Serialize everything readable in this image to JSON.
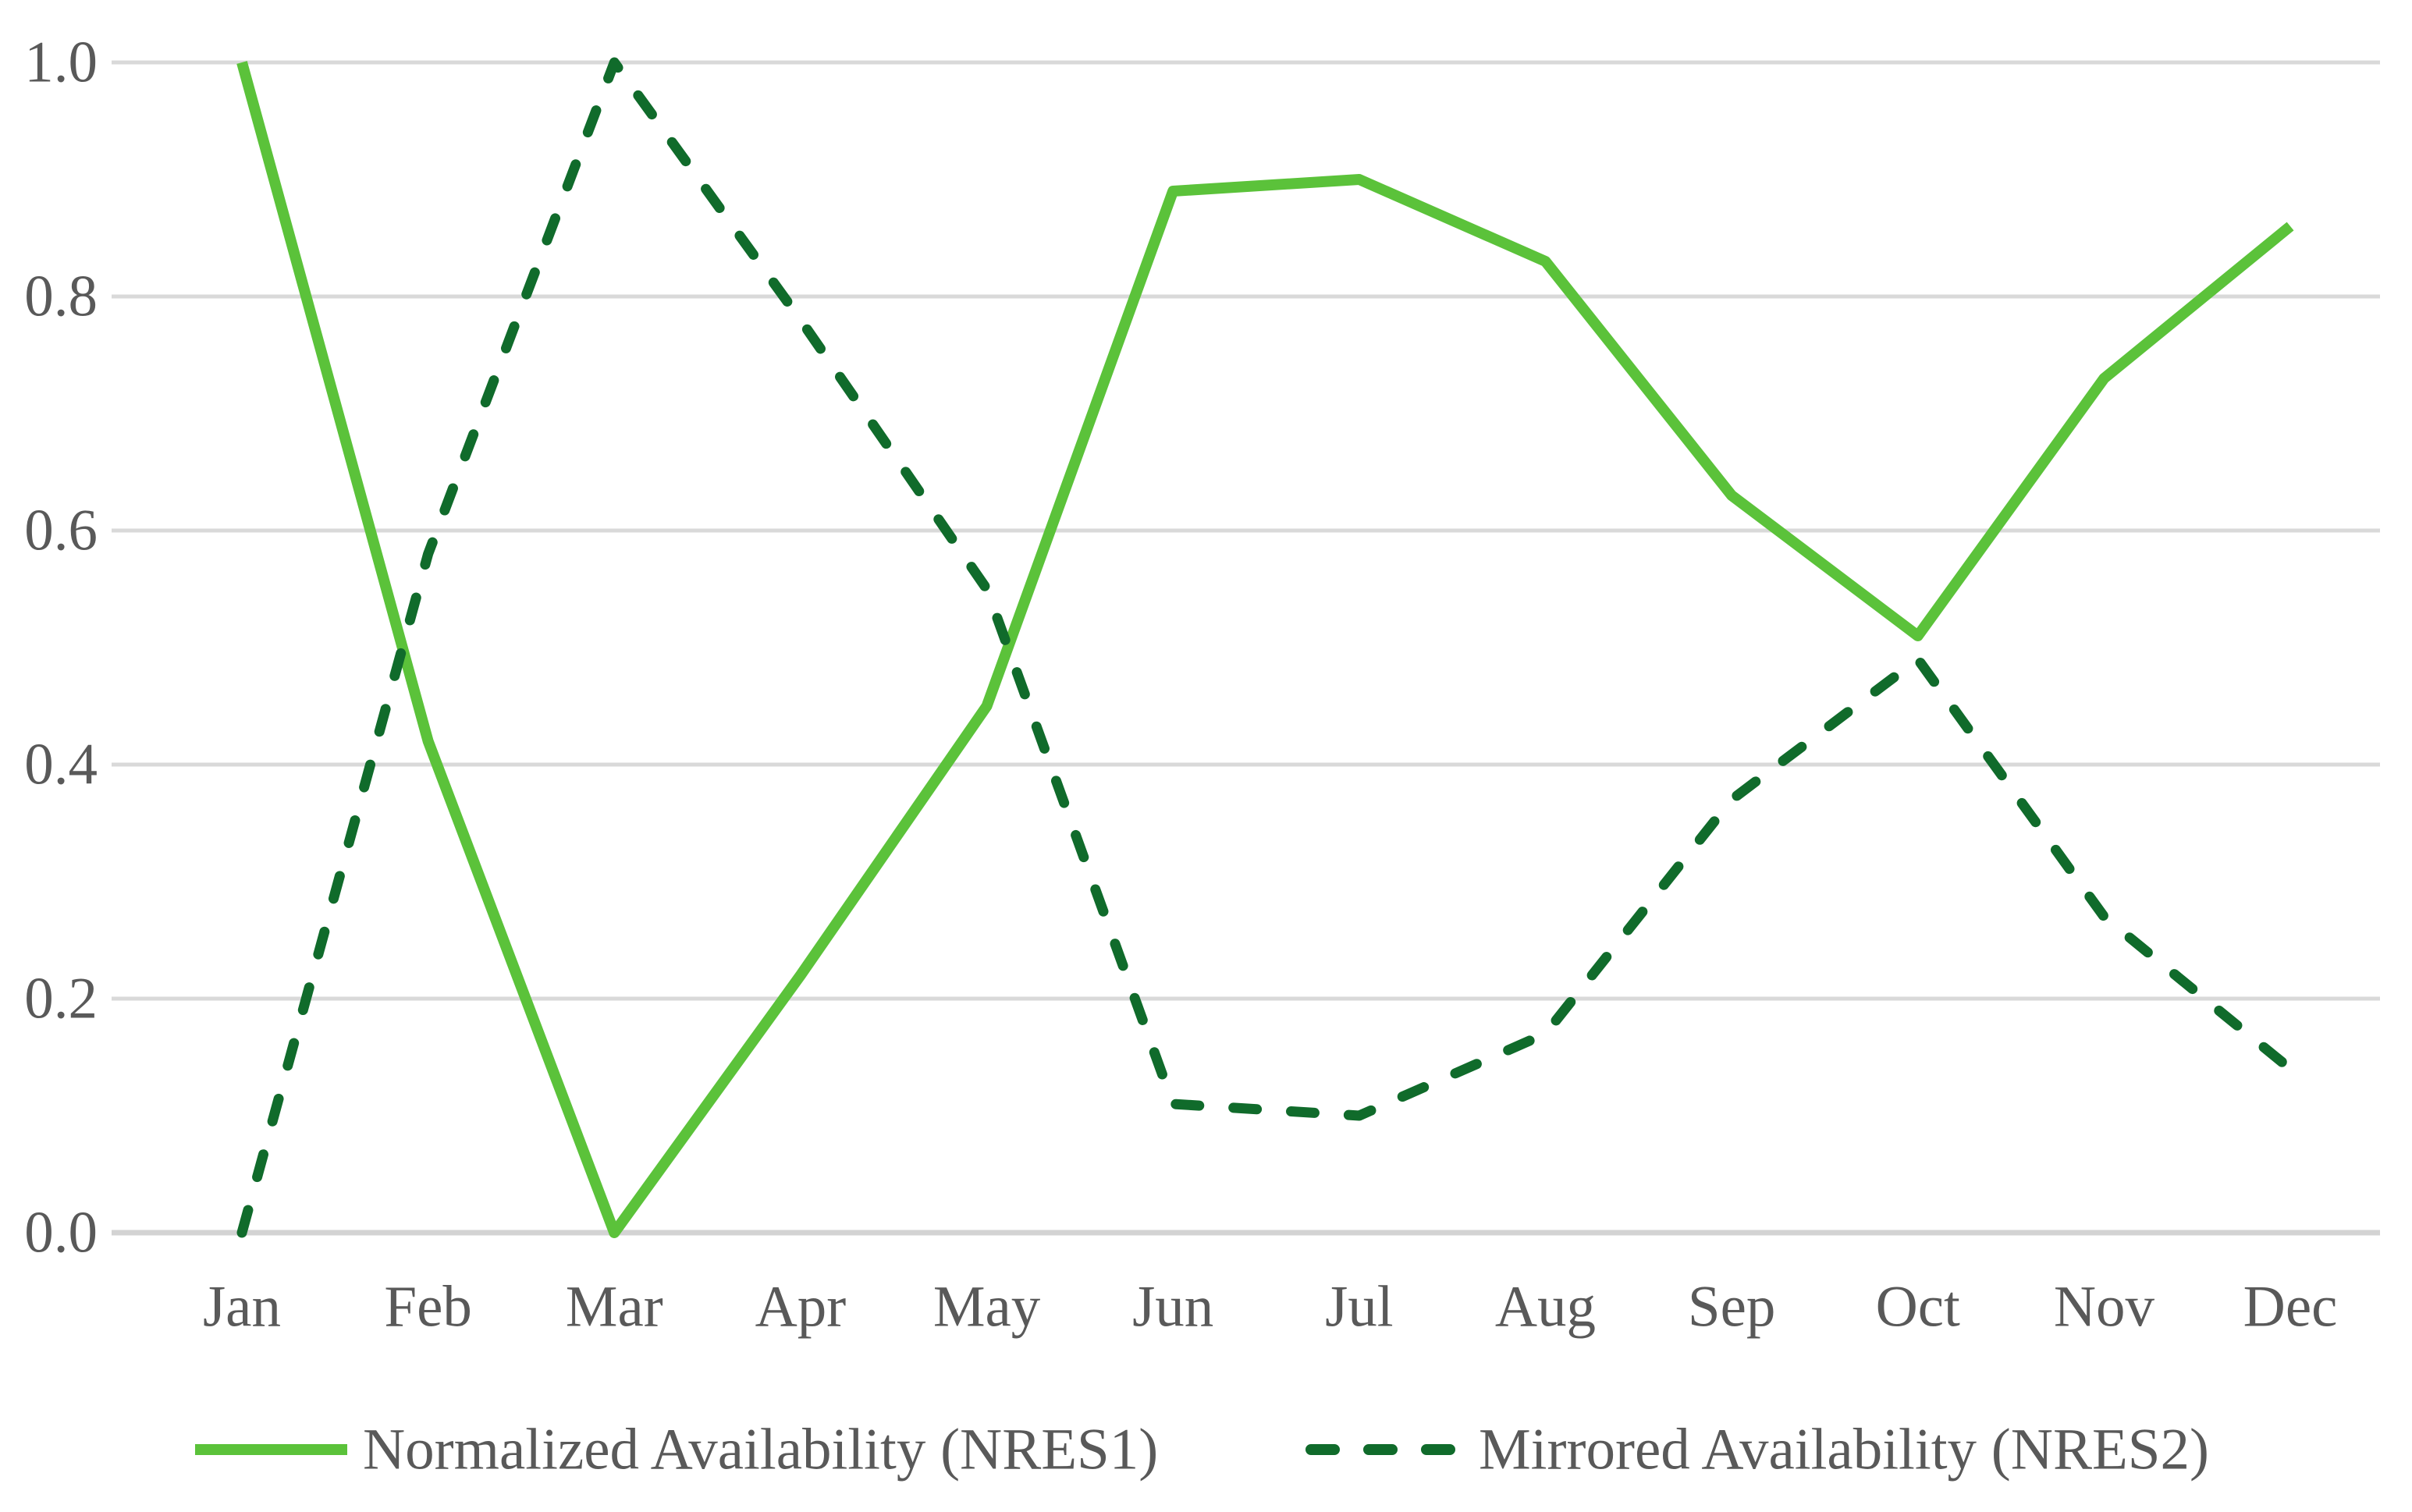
{
  "chart_data": {
    "type": "line",
    "title": "",
    "xlabel": "",
    "ylabel": "",
    "categories": [
      "Jan",
      "Feb",
      "Mar",
      "Apr",
      "May",
      "Jun",
      "Jul",
      "Aug",
      "Sep",
      "Oct",
      "Nov",
      "Dec"
    ],
    "series": [
      {
        "name": "Normalized Availability (NRES1)",
        "style": "solid",
        "color": "#5BC23A",
        "values": [
          1.0,
          0.42,
          0.0,
          0.22,
          0.45,
          0.89,
          0.9,
          0.83,
          0.63,
          0.51,
          0.73,
          0.86
        ]
      },
      {
        "name": "Mirrored Availability (NRES2)",
        "style": "dashed",
        "color": "#106B2B",
        "values": [
          0.0,
          0.58,
          1.0,
          0.78,
          0.55,
          0.11,
          0.1,
          0.17,
          0.37,
          0.49,
          0.27,
          0.14
        ]
      }
    ],
    "ylim": [
      0.0,
      1.0
    ],
    "yticks": [
      0.0,
      0.2,
      0.4,
      0.6,
      0.8,
      1.0
    ],
    "ytick_format": "one-decimal",
    "grid": "horizontal",
    "legend_position": "bottom-center"
  },
  "theme": {
    "background": "#FFFFFF",
    "gridline_color": "#D9D9D9",
    "axis_line_color": "#D3D3D3",
    "text_color": "#595959"
  }
}
